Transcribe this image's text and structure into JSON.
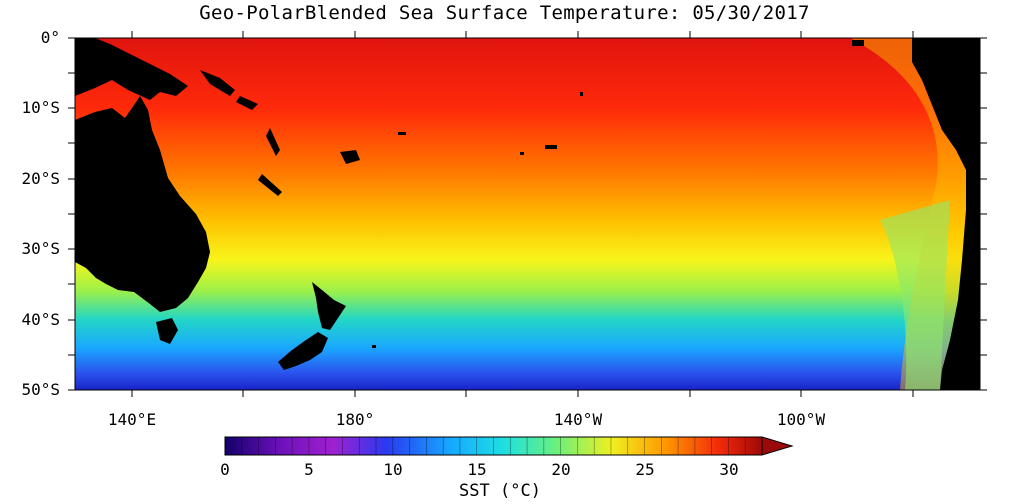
{
  "title": "Geo-PolarBlended Sea Surface Temperature: 05/30/2017",
  "lat_labels": [
    "0°",
    "10°S",
    "20°S",
    "30°S",
    "40°S",
    "50°S"
  ],
  "lon_labels": [
    "140°E",
    "180°",
    "140°W",
    "100°W"
  ],
  "colorbar": {
    "ticks": [
      "0",
      "5",
      "10",
      "15",
      "20",
      "25",
      "30"
    ],
    "label": "SST (°C)",
    "range": [
      0,
      32
    ]
  },
  "colors": {
    "land": "#000000",
    "cold": "#1e2fd6",
    "cool": "#19c7ff",
    "mild": "#37e8a0",
    "warm": "#f6f51c",
    "hot": "#ff8a00",
    "hottest": "#e51a10"
  }
}
